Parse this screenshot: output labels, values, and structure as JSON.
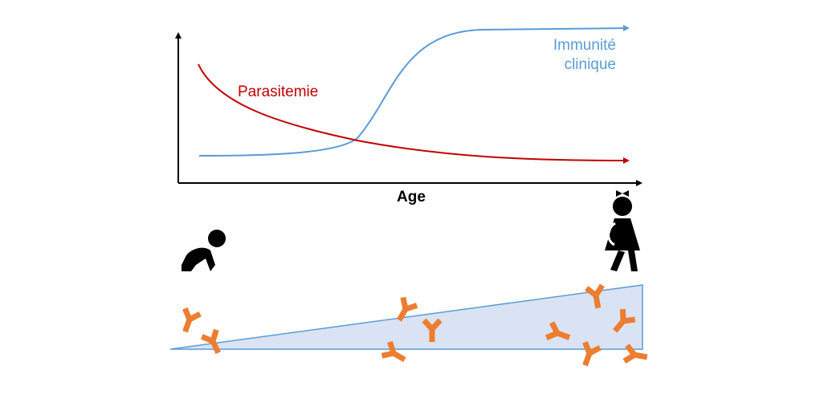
{
  "labels": {
    "parasitemia": "Parasitemie",
    "immunity": [
      "Immunité",
      "clinique"
    ],
    "x_axis": "Age"
  }
}
